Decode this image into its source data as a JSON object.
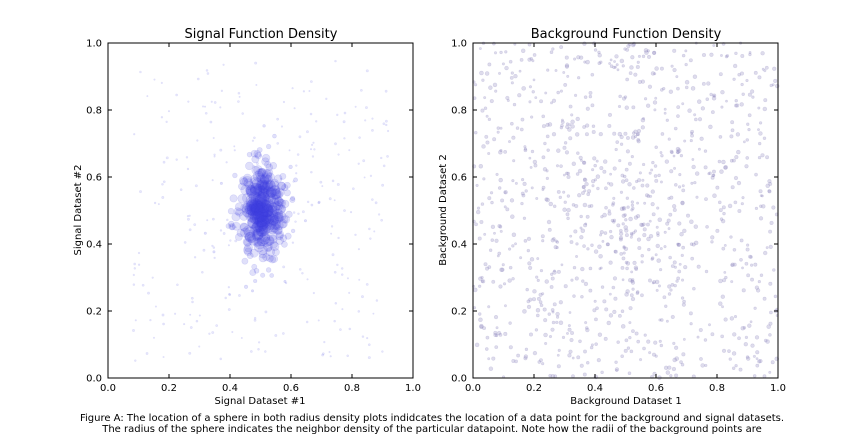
{
  "chart_data": [
    {
      "type": "scatter",
      "title": "Signal Function Density",
      "xlabel": "Signal Dataset #1",
      "ylabel": "Signal Dataset #2",
      "xlim": [
        0,
        1
      ],
      "ylim": [
        0,
        1
      ],
      "xticks": [
        "0.0",
        "0.2",
        "0.4",
        "0.6",
        "0.8",
        "1.0"
      ],
      "yticks": [
        "0.0",
        "0.2",
        "0.4",
        "0.6",
        "0.8",
        "1.0"
      ],
      "grid": false,
      "marker_color": "#4040dd",
      "distribution": "clustered around (0.5, 0.5); sparse faint points elsewhere",
      "cluster_center": [
        0.5,
        0.5
      ],
      "cluster_spread": [
        0.045,
        0.08
      ]
    },
    {
      "type": "scatter",
      "title": "Background Function Density",
      "xlabel": "Background Dataset 1",
      "ylabel": "Background Dataset 2",
      "xlim": [
        0,
        1
      ],
      "ylim": [
        0,
        1
      ],
      "xticks": [
        "0.0",
        "0.2",
        "0.4",
        "0.6",
        "0.8",
        "1.0"
      ],
      "yticks": [
        "0.0",
        "0.2",
        "0.4",
        "0.6",
        "0.8",
        "1.0"
      ],
      "grid": false,
      "marker_color": "#8880bb",
      "distribution": "approximately uniform over [0,1] x [0,1] with slight central concentration"
    }
  ],
  "caption": {
    "line1": "Figure A: The location of a sphere in both radius density plots indidcates the location of a data point for the background and signal datasets.",
    "line2": "The radius of the sphere indicates the neighbor density of the particular datapoint.  Note how the radii of the background points are"
  }
}
